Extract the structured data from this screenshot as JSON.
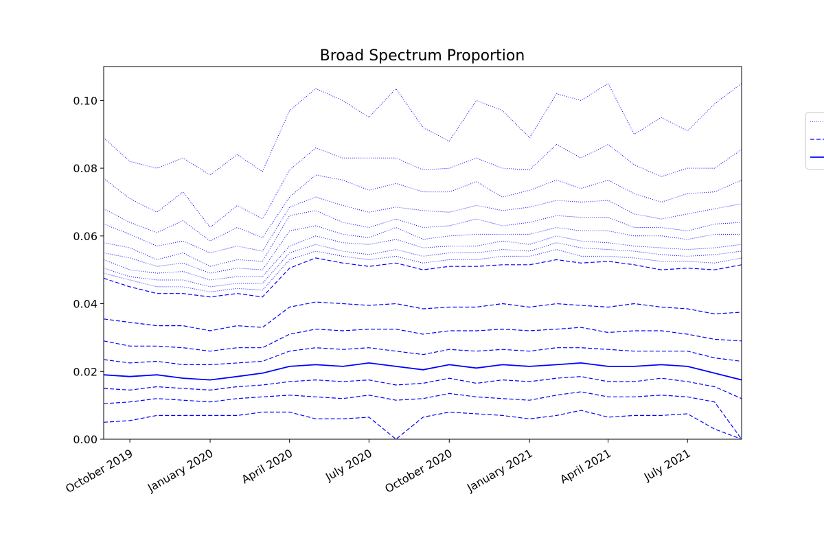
{
  "chart_data": {
    "type": "line",
    "title": "Broad Spectrum Proportion",
    "xlabel": "",
    "ylabel": "",
    "ylim": [
      0.0,
      0.11
    ],
    "xlim": [
      "2019-09-01",
      "2021-09-01"
    ],
    "grid": false,
    "legend_placement": "right",
    "x_tick_labels": [
      "October 2019",
      "January 2020",
      "April 2020",
      "July 2020",
      "October 2020",
      "January 2021",
      "April 2021",
      "July 2021"
    ],
    "x_tick_dates": [
      "2019-10-01",
      "2020-01-01",
      "2020-04-01",
      "2020-07-01",
      "2020-10-01",
      "2021-01-01",
      "2021-04-01",
      "2021-07-01"
    ],
    "y_tick_labels": [
      "0.00",
      "0.02",
      "0.04",
      "0.06",
      "0.08",
      "0.10"
    ],
    "y_tick_values": [
      0.0,
      0.02,
      0.04,
      0.06,
      0.08,
      0.1
    ],
    "x": [
      "2019-09-01",
      "2019-10-01",
      "2019-11-01",
      "2019-12-01",
      "2020-01-01",
      "2020-02-01",
      "2020-03-01",
      "2020-04-01",
      "2020-05-01",
      "2020-06-01",
      "2020-07-01",
      "2020-08-01",
      "2020-09-01",
      "2020-10-01",
      "2020-11-01",
      "2020-12-01",
      "2021-01-01",
      "2021-02-01",
      "2021-03-01",
      "2021-04-01",
      "2021-05-01",
      "2021-06-01",
      "2021-07-01",
      "2021-08-01",
      "2021-09-01"
    ],
    "color": "#0000ff",
    "series": [
      {
        "style": "dotted",
        "values": [
          0.089,
          0.082,
          0.08,
          0.083,
          0.078,
          0.084,
          0.079,
          0.097,
          0.1035,
          0.1,
          0.095,
          0.1035,
          0.092,
          0.088,
          0.1,
          0.097,
          0.089,
          0.102,
          0.1,
          0.105,
          0.09,
          0.095,
          0.091,
          0.099,
          0.105
        ]
      },
      {
        "style": "dotted",
        "values": [
          0.077,
          0.071,
          0.067,
          0.073,
          0.0625,
          0.069,
          0.065,
          0.0795,
          0.086,
          0.083,
          0.083,
          0.083,
          0.0795,
          0.08,
          0.083,
          0.08,
          0.0795,
          0.087,
          0.083,
          0.087,
          0.081,
          0.0775,
          0.08,
          0.08,
          0.0855
        ]
      },
      {
        "style": "dotted",
        "values": [
          0.068,
          0.064,
          0.061,
          0.0645,
          0.0585,
          0.0625,
          0.0595,
          0.0715,
          0.078,
          0.0765,
          0.0735,
          0.0755,
          0.073,
          0.073,
          0.076,
          0.0715,
          0.0735,
          0.0765,
          0.074,
          0.0765,
          0.0725,
          0.07,
          0.0725,
          0.073,
          0.0765
        ]
      },
      {
        "style": "dotted",
        "values": [
          0.0635,
          0.0605,
          0.057,
          0.0585,
          0.055,
          0.057,
          0.0555,
          0.0685,
          0.0715,
          0.069,
          0.067,
          0.0685,
          0.0675,
          0.067,
          0.069,
          0.0675,
          0.0685,
          0.0705,
          0.07,
          0.0705,
          0.0665,
          0.065,
          0.0665,
          0.068,
          0.0695
        ]
      },
      {
        "style": "dotted",
        "values": [
          0.058,
          0.0565,
          0.053,
          0.055,
          0.051,
          0.053,
          0.0525,
          0.066,
          0.0675,
          0.064,
          0.0625,
          0.065,
          0.0625,
          0.063,
          0.065,
          0.063,
          0.064,
          0.066,
          0.0655,
          0.0655,
          0.0625,
          0.0625,
          0.0615,
          0.0635,
          0.064
        ]
      },
      {
        "style": "dotted",
        "values": [
          0.055,
          0.0535,
          0.051,
          0.052,
          0.049,
          0.0505,
          0.05,
          0.0615,
          0.063,
          0.0605,
          0.0595,
          0.0625,
          0.059,
          0.06,
          0.0605,
          0.0605,
          0.0605,
          0.0625,
          0.0615,
          0.0615,
          0.06,
          0.06,
          0.059,
          0.0605,
          0.0605
        ]
      },
      {
        "style": "dotted",
        "values": [
          0.053,
          0.05,
          0.049,
          0.0495,
          0.047,
          0.048,
          0.048,
          0.057,
          0.06,
          0.058,
          0.0575,
          0.059,
          0.0565,
          0.057,
          0.057,
          0.0585,
          0.0575,
          0.06,
          0.0585,
          0.058,
          0.057,
          0.0565,
          0.056,
          0.0565,
          0.0575
        ]
      },
      {
        "style": "dotted",
        "values": [
          0.0505,
          0.048,
          0.047,
          0.047,
          0.045,
          0.046,
          0.046,
          0.055,
          0.0575,
          0.0555,
          0.0545,
          0.056,
          0.054,
          0.055,
          0.055,
          0.056,
          0.0555,
          0.058,
          0.0565,
          0.056,
          0.0555,
          0.0545,
          0.054,
          0.0545,
          0.0555
        ]
      },
      {
        "style": "dotted",
        "values": [
          0.049,
          0.047,
          0.045,
          0.045,
          0.0435,
          0.0445,
          0.044,
          0.053,
          0.0555,
          0.054,
          0.053,
          0.054,
          0.052,
          0.053,
          0.053,
          0.054,
          0.054,
          0.056,
          0.054,
          0.054,
          0.0535,
          0.0525,
          0.0525,
          0.052,
          0.0535
        ]
      },
      {
        "style": "dashed",
        "values": [
          0.0475,
          0.045,
          0.043,
          0.043,
          0.042,
          0.043,
          0.042,
          0.0505,
          0.0535,
          0.052,
          0.051,
          0.052,
          0.05,
          0.051,
          0.051,
          0.0515,
          0.0515,
          0.053,
          0.052,
          0.0525,
          0.0515,
          0.05,
          0.0505,
          0.05,
          0.0515
        ]
      },
      {
        "style": "dashed",
        "values": [
          0.0355,
          0.0345,
          0.0335,
          0.0335,
          0.032,
          0.0335,
          0.033,
          0.039,
          0.0405,
          0.04,
          0.0395,
          0.04,
          0.0385,
          0.039,
          0.039,
          0.04,
          0.039,
          0.04,
          0.0395,
          0.039,
          0.04,
          0.039,
          0.0385,
          0.037,
          0.0375
        ]
      },
      {
        "style": "dashed",
        "values": [
          0.029,
          0.0275,
          0.0275,
          0.027,
          0.026,
          0.027,
          0.027,
          0.031,
          0.0325,
          0.032,
          0.0325,
          0.0325,
          0.031,
          0.032,
          0.032,
          0.0325,
          0.032,
          0.0325,
          0.033,
          0.0315,
          0.032,
          0.032,
          0.031,
          0.0295,
          0.029
        ]
      },
      {
        "style": "dashed",
        "values": [
          0.0235,
          0.0225,
          0.023,
          0.022,
          0.022,
          0.0225,
          0.023,
          0.026,
          0.027,
          0.0265,
          0.027,
          0.026,
          0.025,
          0.0265,
          0.026,
          0.0265,
          0.026,
          0.027,
          0.027,
          0.0265,
          0.026,
          0.026,
          0.026,
          0.024,
          0.023
        ]
      },
      {
        "style": "solid",
        "values": [
          0.019,
          0.0185,
          0.019,
          0.018,
          0.0175,
          0.0185,
          0.0195,
          0.0215,
          0.022,
          0.0215,
          0.0225,
          0.0215,
          0.0205,
          0.022,
          0.021,
          0.022,
          0.0215,
          0.022,
          0.0225,
          0.0215,
          0.0215,
          0.022,
          0.0215,
          0.0195,
          0.0175
        ]
      },
      {
        "style": "dashed",
        "values": [
          0.015,
          0.0145,
          0.0155,
          0.015,
          0.0145,
          0.0155,
          0.016,
          0.017,
          0.0175,
          0.017,
          0.0175,
          0.016,
          0.0165,
          0.018,
          0.0165,
          0.0175,
          0.017,
          0.018,
          0.0185,
          0.017,
          0.017,
          0.018,
          0.017,
          0.0155,
          0.012
        ]
      },
      {
        "style": "dashed",
        "values": [
          0.0105,
          0.011,
          0.012,
          0.0115,
          0.011,
          0.012,
          0.0125,
          0.013,
          0.0125,
          0.012,
          0.013,
          0.0115,
          0.012,
          0.0135,
          0.0125,
          0.012,
          0.0115,
          0.013,
          0.014,
          0.0125,
          0.0125,
          0.013,
          0.0125,
          0.011,
          0.0
        ]
      },
      {
        "style": "dashed",
        "values": [
          0.005,
          0.0055,
          0.007,
          0.007,
          0.007,
          0.007,
          0.008,
          0.008,
          0.006,
          0.006,
          0.0065,
          0.0,
          0.0065,
          0.008,
          0.0075,
          0.007,
          0.006,
          0.007,
          0.0085,
          0.0065,
          0.007,
          0.007,
          0.0075,
          0.003,
          0.0
        ]
      }
    ],
    "legend": [
      {
        "style": "dotted",
        "label": ""
      },
      {
        "style": "dashed",
        "label": ""
      },
      {
        "style": "solid",
        "label": ""
      }
    ]
  }
}
